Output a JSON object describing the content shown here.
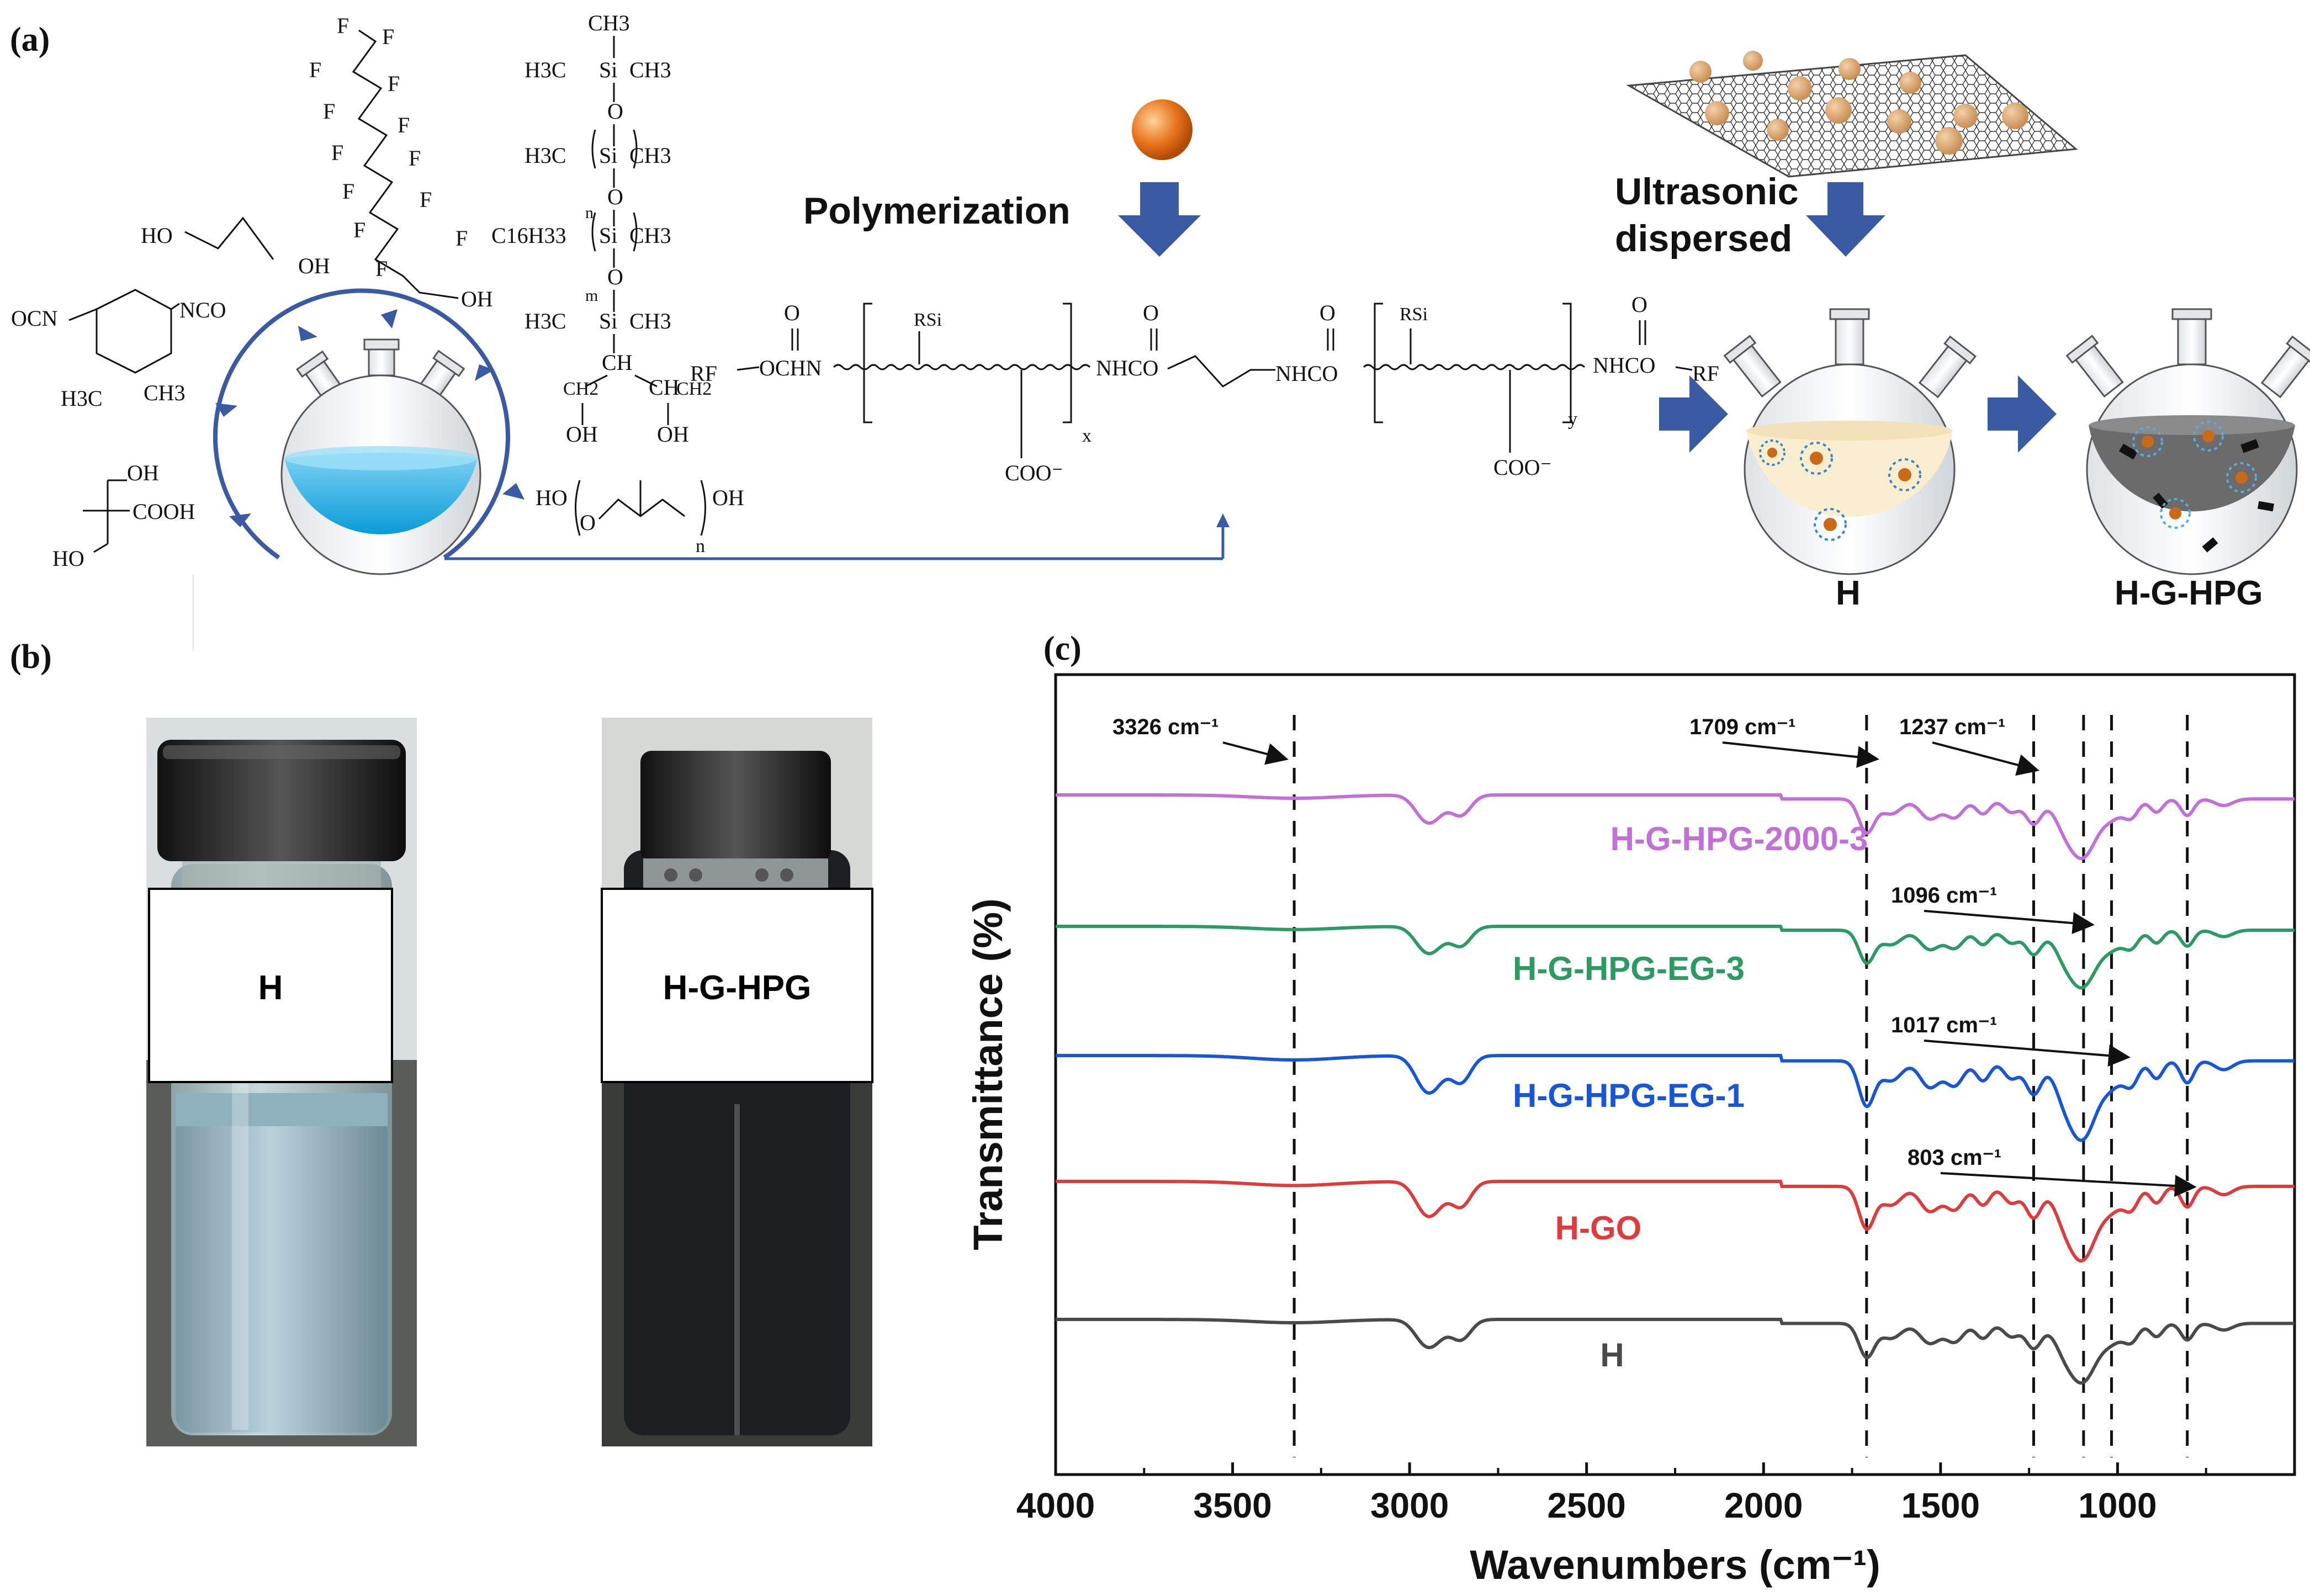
{
  "panels": {
    "a": {
      "label": "(a)"
    },
    "b": {
      "label": "(b)"
    },
    "c": {
      "label": "(c)"
    }
  },
  "scheme": {
    "polymerization_label": "Polymerization",
    "ultrasonic_label_1": "Ultrasonic",
    "ultrasonic_label_2": "dispersed",
    "flask_h_label": "H",
    "flask_hg_label": "H-G-HPG",
    "reagents": {
      "fluoro": [
        "F",
        "F",
        "F",
        "F",
        "F",
        "F",
        "F",
        "F",
        "F",
        "F",
        "F",
        "F",
        "F",
        "OH"
      ],
      "ethylene_glycol": [
        "HO",
        "OH"
      ],
      "isophorone_diisocyanate": [
        "OCN",
        "NCO",
        "H3C",
        "CH3"
      ],
      "dmpa": [
        "OH",
        "COOH",
        "HO"
      ],
      "siloxane": [
        "CH3",
        "H3C",
        "Si",
        "CH3",
        "O",
        "H3C",
        "Si",
        "CH3",
        "O",
        "n",
        "C16H33",
        "Si",
        "CH3",
        "O",
        "m",
        "H3C",
        "Si",
        "CH3",
        "CH",
        "CH2",
        "CH",
        "OH",
        "OH",
        "CH2"
      ],
      "polyglycerol": [
        "HO",
        "O",
        "OH",
        "n"
      ]
    },
    "polymer": [
      "RF",
      "OCHN",
      "RSi",
      "O",
      "COO⁻",
      "x",
      "NHCO",
      "O",
      "NHCO",
      "O",
      "RSi",
      "COO⁻",
      "y",
      "NHCO",
      "O",
      "RF"
    ]
  },
  "photos": {
    "left_label": "H",
    "right_label": "H-G-HPG"
  },
  "chart_data": {
    "type": "line",
    "xlabel": "Wavenumbers (cm⁻¹)",
    "ylabel": "Transmittance (%)",
    "xlim": [
      4000,
      500
    ],
    "x_reversed": true,
    "xticks": [
      4000,
      3500,
      3000,
      2500,
      2000,
      1500,
      1000
    ],
    "yticks_shown": false,
    "series": [
      {
        "name": "H-G-HPG-2000-3",
        "color": "#c26fd9",
        "offset": 4
      },
      {
        "name": "H-G-HPG-EG-3",
        "color": "#2b9a63",
        "offset": 3
      },
      {
        "name": "H-G-HPG-EG-1",
        "color": "#1756d6",
        "offset": 2
      },
      {
        "name": "H-GO",
        "color": "#e03b3b",
        "offset": 1
      },
      {
        "name": "H",
        "color": "#4a4a4a",
        "offset": 0
      }
    ],
    "reference_lines": [
      3326,
      1709,
      1237,
      1096,
      1017,
      803
    ],
    "annotations": [
      {
        "text": "3326 cm⁻¹",
        "target": 3326
      },
      {
        "text": "1709 cm⁻¹",
        "target": 1709
      },
      {
        "text": "1237 cm⁻¹",
        "target": 1237
      },
      {
        "text": "1096 cm⁻¹",
        "target": 1096
      },
      {
        "text": "1017 cm⁻¹",
        "target": 1017
      },
      {
        "text": "803 cm⁻¹",
        "target": 803
      }
    ]
  }
}
